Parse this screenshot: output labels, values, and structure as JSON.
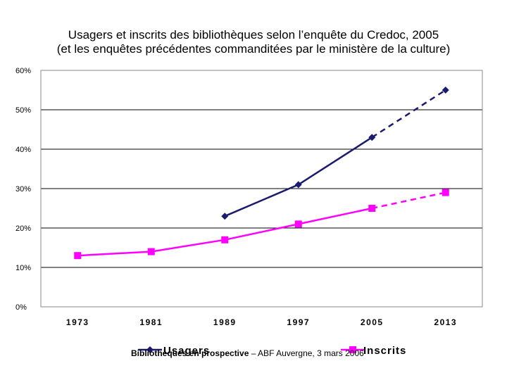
{
  "chart_data": {
    "type": "line",
    "title_line1": "Usagers et inscrits des bibliothèques selon l’enquête du Credoc, 2005",
    "title_line2": "(et les enquêtes précédentes commanditées par le ministère de la culture)",
    "categories": [
      "1973",
      "1981",
      "1989",
      "1997",
      "2005",
      "2013"
    ],
    "y_ticks": [
      "0%",
      "10%",
      "20%",
      "30%",
      "40%",
      "50%",
      "60%"
    ],
    "ylim": [
      0,
      60
    ],
    "grid": true,
    "legend_position": "bottom",
    "series": [
      {
        "name": "Usagers",
        "color": "#1a1a6e",
        "marker": "diamond",
        "values": [
          null,
          null,
          23,
          31,
          43,
          55
        ],
        "projected_from_index": 4
      },
      {
        "name": "Inscrits",
        "color": "#ff00ff",
        "marker": "square",
        "values": [
          13,
          14,
          17,
          21,
          25,
          29
        ],
        "projected_from_index": 4
      }
    ]
  },
  "footer": {
    "bold_text": "Bibliothèques en prospective",
    "rest_text": " – ABF Auvergne, 3 mars 2006"
  }
}
